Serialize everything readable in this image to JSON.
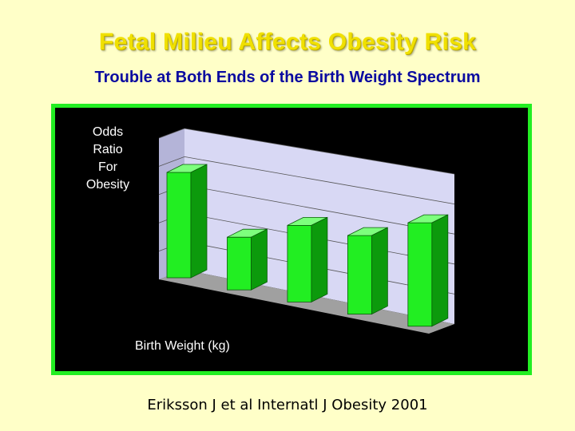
{
  "slide": {
    "title": "Fetal Milieu Affects Obesity Risk",
    "subtitle": "Trouble at Both Ends of the Birth Weight Spectrum",
    "citation": "Eriksson J et al Internatl J Obesity 2001"
  },
  "colors": {
    "background": "#ffffc8",
    "title": "#f0e000",
    "subtitle": "#0a0aa0",
    "frame": "#22ee22",
    "bar_front": "#22ee22",
    "bar_top": "#7dff7d",
    "bar_side": "#0c9a0c",
    "back_wall": "#d8d8f4",
    "floor": "#a0a0a0"
  },
  "chart_data": {
    "type": "bar",
    "style": "3d",
    "title": "",
    "ylabel": "Odds\nRatio\nFor\nObesity",
    "xlabel": "Birth Weight (kg)",
    "categories": [
      "",
      "",
      "",
      "",
      ""
    ],
    "values": [
      1.6,
      1.05,
      1.3,
      1.32,
      1.58
    ],
    "ylim": [
      0.5,
      2.0
    ],
    "grid": true
  }
}
